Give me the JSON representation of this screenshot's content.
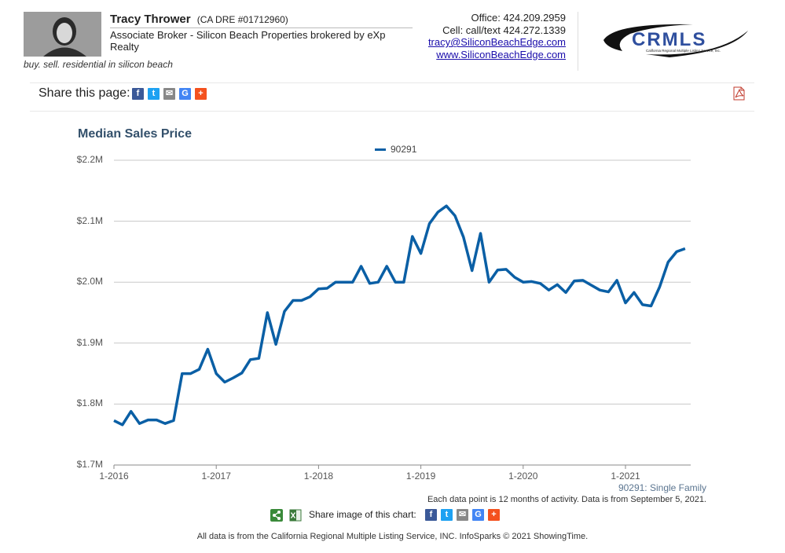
{
  "header": {
    "name": "Tracy Thrower",
    "license": "(CA DRE #01712960)",
    "title": "Associate Broker - Silicon Beach Properties brokered by eXp Realty",
    "tagline": "buy. sell. residential in silicon beach",
    "office": "Office: 424.209.2959",
    "cell": "Cell: call/text 424.272.1339",
    "email": "tracy@SiliconBeachEdge.com",
    "website": "www.SiliconBeachEdge.com",
    "logo_text": "CRMLS",
    "logo_subtext": "California Regional Multiple Listing Service, Inc."
  },
  "share": {
    "label": "Share this page:",
    "image_label": "Share image of this chart:",
    "icons": [
      "facebook-icon",
      "twitter-icon",
      "email-icon",
      "google-icon",
      "plus-icon"
    ]
  },
  "chart_data": {
    "type": "line",
    "title": "Median Sales Price",
    "ylim": [
      1700000,
      2200000
    ],
    "yticks": [
      "$1.7M",
      "$1.8M",
      "$1.9M",
      "$2.0M",
      "$2.1M",
      "$2.2M"
    ],
    "xticks": [
      "1-2016",
      "1-2017",
      "1-2018",
      "1-2019",
      "1-2020",
      "1-2021"
    ],
    "legend_position": "top-center",
    "grid": true,
    "x": [
      "2016-01",
      "2016-02",
      "2016-03",
      "2016-04",
      "2016-05",
      "2016-06",
      "2016-07",
      "2016-08",
      "2016-09",
      "2016-10",
      "2016-11",
      "2016-12",
      "2017-01",
      "2017-02",
      "2017-03",
      "2017-04",
      "2017-05",
      "2017-06",
      "2017-07",
      "2017-08",
      "2017-09",
      "2017-10",
      "2017-11",
      "2017-12",
      "2018-01",
      "2018-02",
      "2018-03",
      "2018-04",
      "2018-05",
      "2018-06",
      "2018-07",
      "2018-08",
      "2018-09",
      "2018-10",
      "2018-11",
      "2018-12",
      "2019-01",
      "2019-02",
      "2019-03",
      "2019-04",
      "2019-05",
      "2019-06",
      "2019-07",
      "2019-08",
      "2019-09",
      "2019-10",
      "2019-11",
      "2019-12",
      "2020-01",
      "2020-02",
      "2020-03",
      "2020-04",
      "2020-05",
      "2020-06",
      "2020-07",
      "2020-08",
      "2020-09",
      "2020-10",
      "2020-11",
      "2020-12",
      "2021-01",
      "2021-02",
      "2021-03",
      "2021-04",
      "2021-05",
      "2021-06",
      "2021-07",
      "2021-08"
    ],
    "series": [
      {
        "name": "90291",
        "color": "#0a5fa5",
        "values": [
          1773000,
          1766000,
          1788000,
          1768000,
          1774000,
          1774000,
          1768000,
          1773000,
          1850000,
          1850000,
          1857000,
          1890000,
          1850000,
          1836000,
          1843000,
          1851000,
          1873000,
          1875000,
          1950000,
          1898000,
          1952000,
          1970000,
          1970000,
          1976000,
          1989000,
          1990000,
          2000000,
          2000000,
          2000000,
          2026000,
          1998000,
          2000000,
          2026000,
          2000000,
          2000000,
          2075000,
          2047000,
          2096000,
          2115000,
          2125000,
          2109000,
          2074000,
          2019000,
          2080000,
          2000000,
          2020000,
          2021000,
          2008000,
          2000000,
          2001000,
          1998000,
          1987000,
          1996000,
          1983000,
          2002000,
          2003000,
          1995000,
          1987000,
          1984000,
          2003000,
          1966000,
          1983000,
          1963000,
          1961000,
          1992000,
          2033000,
          2050000,
          2055000
        ]
      }
    ],
    "series_subtitle": "90291: Single Family",
    "note": "Each data point is 12 months of activity. Data is from September 5, 2021."
  },
  "footer": "All data is from the California Regional Multiple Listing Service, INC. InfoSparks © 2021 ShowingTime."
}
